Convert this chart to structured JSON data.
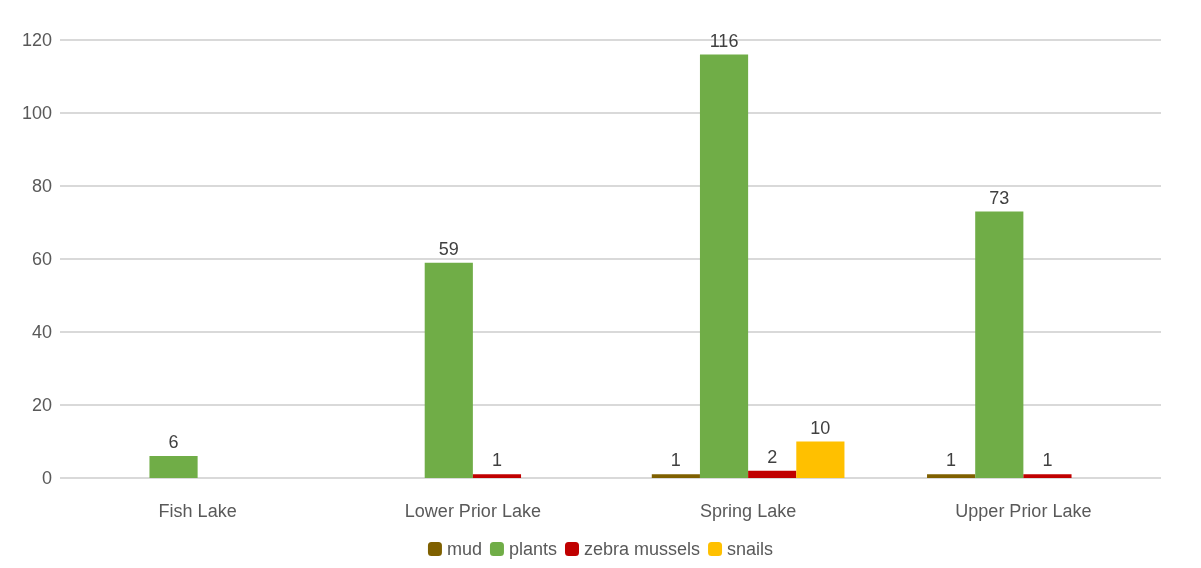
{
  "chart_data": {
    "type": "bar",
    "categories": [
      "Fish Lake",
      "Lower Prior Lake",
      "Spring Lake",
      "Upper Prior Lake"
    ],
    "series": [
      {
        "name": "mud",
        "color": "#7f6000",
        "values": [
          null,
          null,
          1,
          1
        ]
      },
      {
        "name": "plants",
        "color": "#70ad47",
        "values": [
          6,
          59,
          116,
          73
        ]
      },
      {
        "name": "zebra mussels",
        "color": "#c00000",
        "values": [
          null,
          1,
          2,
          1
        ]
      },
      {
        "name": "snails",
        "color": "#ffc000",
        "values": [
          null,
          null,
          10,
          null
        ]
      }
    ],
    "ylim": [
      0,
      120
    ],
    "yticks": [
      0,
      20,
      40,
      60,
      80,
      100,
      120
    ],
    "grid": true,
    "legend": "bottom",
    "data_labels": true
  }
}
